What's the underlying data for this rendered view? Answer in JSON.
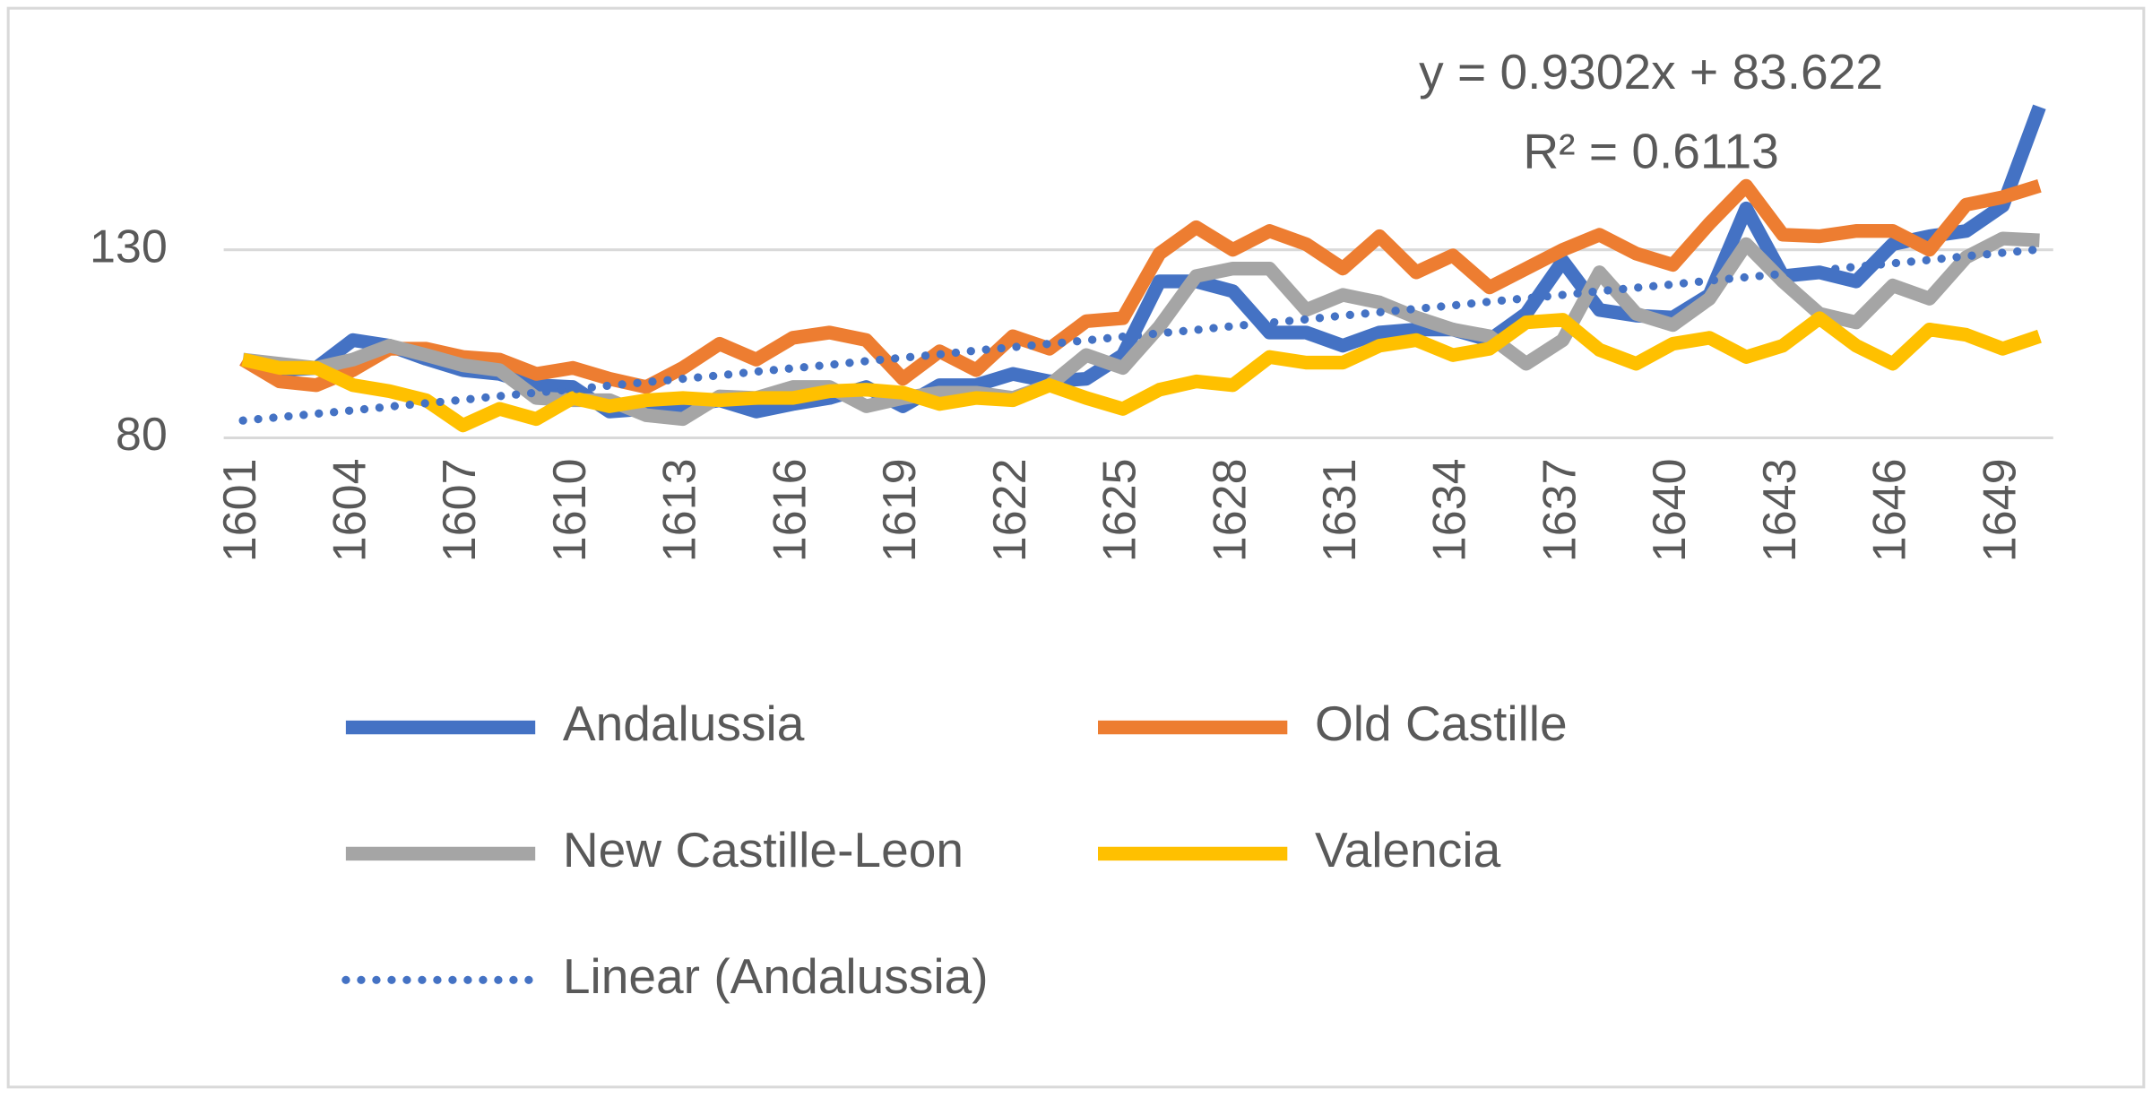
{
  "chart_data": {
    "type": "line",
    "annotation": [
      "y = 0.9302x + 83.622",
      "R² = 0.6113"
    ],
    "categories": [
      "1601",
      null,
      null,
      "1604",
      null,
      null,
      "1607",
      null,
      null,
      "1610",
      null,
      null,
      "1613",
      null,
      null,
      "1616",
      null,
      null,
      "1619",
      null,
      null,
      "1622",
      null,
      null,
      "1625",
      null,
      null,
      "1628",
      null,
      null,
      "1631",
      null,
      null,
      "1634",
      null,
      null,
      "1637",
      null,
      null,
      "1640",
      null,
      null,
      "1643",
      null,
      null,
      "1646",
      null,
      null,
      "1649",
      null
    ],
    "series": [
      {
        "name": "Andalussia",
        "color": "#4472c4",
        "values": [
          100.8,
          98,
          98.6,
          106,
          104.5,
          101,
          98,
          97,
          94,
          93.5,
          87,
          87.7,
          88.4,
          90,
          87,
          89,
          90.6,
          93.5,
          88.4,
          94,
          94,
          97,
          95,
          95.7,
          102,
          121.6,
          121.6,
          119,
          108,
          108,
          104.5,
          108,
          108.8,
          108.8,
          106,
          113,
          127,
          114,
          112.5,
          112,
          118,
          141,
          123,
          124,
          121.6,
          131.5,
          133.6,
          135,
          141.7,
          168
        ]
      },
      {
        "name": "Old Castille",
        "color": "#ed7d31",
        "values": [
          100.8,
          95,
          94,
          98,
          103.7,
          103.7,
          101.5,
          100.8,
          97,
          98.6,
          95.7,
          93.5,
          98.6,
          105,
          100.8,
          106.6,
          108,
          106,
          95.7,
          103,
          98,
          107,
          103.7,
          111,
          111.8,
          129,
          136,
          130,
          135,
          131.5,
          125,
          133.6,
          124,
          128.5,
          120,
          125,
          130,
          134,
          129,
          126,
          137,
          147,
          134,
          133.6,
          135,
          135,
          130,
          142,
          144,
          147
        ]
      },
      {
        "name": "New Castille-Leon",
        "color": "#a5a5a5",
        "values": [
          100.8,
          99.7,
          98.6,
          100.8,
          104.5,
          102,
          99.3,
          98,
          90.6,
          90,
          90,
          86,
          85,
          91,
          90.6,
          93.5,
          93.5,
          88.4,
          90.6,
          92,
          92,
          90.6,
          94,
          102,
          98.6,
          109.6,
          123,
          125,
          125,
          114,
          118,
          116,
          112,
          108.8,
          107,
          99.7,
          106,
          124,
          113,
          110,
          117,
          131.5,
          121.6,
          113,
          110.7,
          120.5,
          117,
          128,
          133,
          132.5
        ]
      },
      {
        "name": "Valencia",
        "color": "#ffc000",
        "values": [
          100.8,
          98.6,
          98.6,
          94,
          92.4,
          90,
          83.3,
          87.7,
          85,
          90.6,
          88.4,
          90,
          90.6,
          90,
          90.6,
          90.6,
          92.4,
          92.8,
          92,
          89,
          90.6,
          90,
          94,
          90.6,
          87.7,
          92.8,
          95,
          94,
          101.5,
          100,
          100,
          104.5,
          106,
          102,
          103.7,
          110.7,
          111.4,
          103.4,
          99.7,
          105,
          106.6,
          101.5,
          104.5,
          111.8,
          104.5,
          99.7,
          108.8,
          107.4,
          103.7,
          107
        ]
      },
      {
        "name": "Linear (Andalussia)",
        "color": "#4472c4",
        "dotted": true,
        "values": [
          84.6,
          85.5,
          86.4,
          87.3,
          88.3,
          89.2,
          90.1,
          91.1,
          92.0,
          92.9,
          93.9,
          94.8,
          95.7,
          96.6,
          97.6,
          98.5,
          99.4,
          100.4,
          101.3,
          102.2,
          103.2,
          104.1,
          105.0,
          105.9,
          106.9,
          107.8,
          108.7,
          109.7,
          110.6,
          111.5,
          112.5,
          113.4,
          114.3,
          115.2,
          116.2,
          117.1,
          118.0,
          119.0,
          119.9,
          120.8,
          121.8,
          122.7,
          123.6,
          124.5,
          125.5,
          126.4,
          127.3,
          128.3,
          129.2,
          130.1
        ]
      }
    ],
    "ylim": [
      80,
      180
    ],
    "yticks": [
      80,
      130
    ],
    "grid": true,
    "legend": "bottom"
  }
}
